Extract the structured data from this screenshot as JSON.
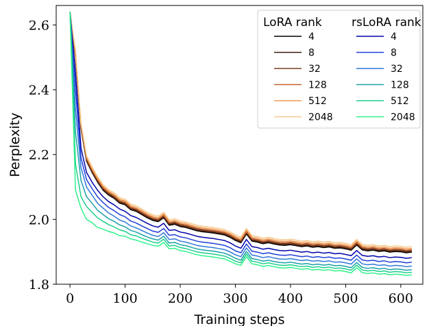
{
  "chart_data": {
    "type": "line",
    "xlabel": "Training steps",
    "ylabel": "Perplexity",
    "xlim": [
      -25,
      640
    ],
    "ylim": [
      1.8,
      2.66
    ],
    "x_ticks": [
      "0",
      "100",
      "200",
      "300",
      "400",
      "500",
      "600"
    ],
    "y_ticks": [
      "1.8",
      "2.0",
      "2.2",
      "2.4",
      "2.6"
    ],
    "grid": false,
    "legend_placement": "top-right",
    "legend": {
      "lora_title": "LoRA rank",
      "rslora_title": "rsLoRA rank"
    },
    "x": [
      0,
      10,
      20,
      30,
      40,
      50,
      60,
      70,
      80,
      90,
      100,
      110,
      120,
      130,
      140,
      150,
      160,
      170,
      180,
      190,
      200,
      210,
      220,
      230,
      240,
      250,
      260,
      270,
      280,
      290,
      300,
      310,
      320,
      330,
      340,
      350,
      360,
      370,
      380,
      390,
      400,
      410,
      420,
      430,
      440,
      450,
      460,
      470,
      480,
      490,
      500,
      510,
      520,
      530,
      540,
      550,
      560,
      570,
      580,
      590,
      600,
      610,
      620
    ],
    "series": [
      {
        "group": "LoRA",
        "name": "4",
        "color": "#000000",
        "values": [
          2.64,
          2.5,
          2.28,
          2.18,
          2.145,
          2.115,
          2.09,
          2.075,
          2.065,
          2.05,
          2.045,
          2.03,
          2.025,
          2.015,
          2.005,
          1.997,
          1.993,
          2.005,
          1.982,
          1.985,
          1.978,
          1.975,
          1.97,
          1.965,
          1.962,
          1.96,
          1.958,
          1.955,
          1.952,
          1.945,
          1.935,
          1.928,
          1.955,
          1.933,
          1.93,
          1.925,
          1.928,
          1.924,
          1.921,
          1.92,
          1.922,
          1.919,
          1.916,
          1.918,
          1.914,
          1.916,
          1.913,
          1.915,
          1.911,
          1.912,
          1.909,
          1.905,
          1.921,
          1.906,
          1.903,
          1.905,
          1.901,
          1.903,
          1.899,
          1.901,
          1.9,
          1.897,
          1.899
        ]
      },
      {
        "group": "LoRA",
        "name": "8",
        "color": "#3a1a0c",
        "values": [
          2.64,
          2.502,
          2.282,
          2.182,
          2.147,
          2.117,
          2.092,
          2.077,
          2.067,
          2.052,
          2.047,
          2.032,
          2.027,
          2.017,
          2.007,
          1.999,
          1.995,
          2.007,
          1.984,
          1.987,
          1.98,
          1.977,
          1.972,
          1.967,
          1.964,
          1.962,
          1.96,
          1.957,
          1.954,
          1.947,
          1.937,
          1.93,
          1.957,
          1.935,
          1.932,
          1.927,
          1.93,
          1.926,
          1.923,
          1.922,
          1.924,
          1.921,
          1.918,
          1.92,
          1.916,
          1.918,
          1.915,
          1.917,
          1.913,
          1.914,
          1.911,
          1.907,
          1.923,
          1.908,
          1.905,
          1.907,
          1.903,
          1.905,
          1.901,
          1.903,
          1.902,
          1.899,
          1.901
        ]
      },
      {
        "group": "LoRA",
        "name": "32",
        "color": "#7a3e1e",
        "values": [
          2.64,
          2.505,
          2.285,
          2.185,
          2.15,
          2.12,
          2.095,
          2.08,
          2.07,
          2.055,
          2.05,
          2.035,
          2.03,
          2.02,
          2.01,
          2.002,
          1.998,
          2.01,
          1.987,
          1.99,
          1.983,
          1.98,
          1.975,
          1.97,
          1.967,
          1.965,
          1.963,
          1.96,
          1.957,
          1.95,
          1.94,
          1.933,
          1.96,
          1.938,
          1.935,
          1.93,
          1.933,
          1.929,
          1.926,
          1.925,
          1.927,
          1.924,
          1.921,
          1.923,
          1.919,
          1.921,
          1.918,
          1.92,
          1.916,
          1.917,
          1.914,
          1.91,
          1.926,
          1.911,
          1.908,
          1.91,
          1.906,
          1.908,
          1.904,
          1.906,
          1.905,
          1.902,
          1.904
        ]
      },
      {
        "group": "LoRA",
        "name": "128",
        "color": "#c4622e",
        "values": [
          2.64,
          2.508,
          2.288,
          2.188,
          2.153,
          2.123,
          2.098,
          2.083,
          2.073,
          2.058,
          2.053,
          2.038,
          2.033,
          2.023,
          2.013,
          2.005,
          2.001,
          2.013,
          1.99,
          1.993,
          1.986,
          1.983,
          1.978,
          1.973,
          1.97,
          1.968,
          1.966,
          1.963,
          1.96,
          1.953,
          1.943,
          1.936,
          1.963,
          1.941,
          1.938,
          1.933,
          1.936,
          1.932,
          1.929,
          1.928,
          1.93,
          1.927,
          1.924,
          1.926,
          1.922,
          1.924,
          1.921,
          1.923,
          1.919,
          1.92,
          1.917,
          1.913,
          1.929,
          1.914,
          1.911,
          1.913,
          1.909,
          1.911,
          1.907,
          1.909,
          1.908,
          1.905,
          1.907
        ]
      },
      {
        "group": "LoRA",
        "name": "512",
        "color": "#ee9a55",
        "values": [
          2.64,
          2.515,
          2.292,
          2.192,
          2.157,
          2.127,
          2.102,
          2.087,
          2.077,
          2.062,
          2.057,
          2.042,
          2.037,
          2.027,
          2.017,
          2.009,
          2.005,
          2.017,
          1.994,
          1.997,
          1.99,
          1.987,
          1.982,
          1.977,
          1.974,
          1.972,
          1.97,
          1.967,
          1.964,
          1.957,
          1.947,
          1.94,
          1.967,
          1.945,
          1.942,
          1.937,
          1.94,
          1.936,
          1.933,
          1.932,
          1.934,
          1.931,
          1.928,
          1.93,
          1.926,
          1.928,
          1.925,
          1.927,
          1.923,
          1.924,
          1.921,
          1.917,
          1.933,
          1.918,
          1.915,
          1.917,
          1.913,
          1.915,
          1.911,
          1.913,
          1.912,
          1.909,
          1.911
        ]
      },
      {
        "group": "LoRA",
        "name": "2048",
        "color": "#f6c98a",
        "values": [
          2.64,
          2.522,
          2.297,
          2.197,
          2.162,
          2.132,
          2.107,
          2.092,
          2.082,
          2.067,
          2.062,
          2.047,
          2.042,
          2.032,
          2.022,
          2.014,
          2.01,
          2.022,
          1.999,
          2.002,
          1.995,
          1.992,
          1.987,
          1.982,
          1.979,
          1.977,
          1.975,
          1.972,
          1.969,
          1.962,
          1.952,
          1.945,
          1.972,
          1.95,
          1.947,
          1.942,
          1.945,
          1.941,
          1.938,
          1.937,
          1.939,
          1.936,
          1.933,
          1.935,
          1.931,
          1.933,
          1.93,
          1.932,
          1.928,
          1.929,
          1.926,
          1.922,
          1.938,
          1.923,
          1.92,
          1.922,
          1.918,
          1.92,
          1.916,
          1.918,
          1.917,
          1.914,
          1.916
        ]
      },
      {
        "group": "rsLoRA",
        "name": "4",
        "color": "#0000aa",
        "values": [
          2.64,
          2.45,
          2.22,
          2.145,
          2.115,
          2.09,
          2.07,
          2.055,
          2.045,
          2.032,
          2.025,
          2.012,
          2.006,
          1.997,
          1.988,
          1.98,
          1.976,
          1.988,
          1.966,
          1.968,
          1.961,
          1.958,
          1.953,
          1.948,
          1.945,
          1.943,
          1.941,
          1.938,
          1.935,
          1.928,
          1.918,
          1.911,
          1.938,
          1.916,
          1.913,
          1.908,
          1.911,
          1.907,
          1.904,
          1.903,
          1.905,
          1.902,
          1.899,
          1.901,
          1.897,
          1.899,
          1.896,
          1.898,
          1.894,
          1.895,
          1.892,
          1.888,
          1.904,
          1.889,
          1.886,
          1.888,
          1.884,
          1.886,
          1.882,
          1.884,
          1.883,
          1.88,
          1.882
        ]
      },
      {
        "group": "rsLoRA",
        "name": "8",
        "color": "#1f3fd8",
        "values": [
          2.64,
          2.4,
          2.19,
          2.123,
          2.095,
          2.07,
          2.052,
          2.037,
          2.027,
          2.015,
          2.008,
          1.995,
          1.989,
          1.98,
          1.972,
          1.964,
          1.96,
          1.972,
          1.951,
          1.953,
          1.946,
          1.943,
          1.938,
          1.933,
          1.93,
          1.928,
          1.926,
          1.923,
          1.92,
          1.913,
          1.903,
          1.897,
          1.924,
          1.902,
          1.899,
          1.894,
          1.897,
          1.893,
          1.89,
          1.889,
          1.891,
          1.888,
          1.885,
          1.887,
          1.883,
          1.885,
          1.882,
          1.884,
          1.88,
          1.881,
          1.878,
          1.874,
          1.89,
          1.875,
          1.872,
          1.874,
          1.87,
          1.872,
          1.868,
          1.87,
          1.869,
          1.866,
          1.868
        ]
      },
      {
        "group": "rsLoRA",
        "name": "32",
        "color": "#2f78d8",
        "values": [
          2.64,
          2.34,
          2.16,
          2.1,
          2.075,
          2.05,
          2.035,
          2.02,
          2.01,
          1.998,
          1.992,
          1.98,
          1.974,
          1.966,
          1.958,
          1.951,
          1.947,
          1.959,
          1.938,
          1.94,
          1.933,
          1.93,
          1.925,
          1.92,
          1.917,
          1.915,
          1.913,
          1.91,
          1.907,
          1.9,
          1.891,
          1.885,
          1.912,
          1.89,
          1.887,
          1.882,
          1.885,
          1.881,
          1.878,
          1.877,
          1.879,
          1.876,
          1.873,
          1.875,
          1.871,
          1.873,
          1.87,
          1.872,
          1.868,
          1.869,
          1.866,
          1.862,
          1.878,
          1.863,
          1.86,
          1.862,
          1.858,
          1.86,
          1.856,
          1.858,
          1.857,
          1.854,
          1.856
        ]
      },
      {
        "group": "rsLoRA",
        "name": "128",
        "color": "#1aa0a8",
        "values": [
          2.64,
          2.27,
          2.12,
          2.07,
          2.05,
          2.028,
          2.015,
          2.002,
          1.994,
          1.983,
          1.977,
          1.966,
          1.961,
          1.953,
          1.946,
          1.94,
          1.936,
          1.948,
          1.927,
          1.929,
          1.922,
          1.919,
          1.914,
          1.909,
          1.906,
          1.904,
          1.902,
          1.899,
          1.896,
          1.889,
          1.88,
          1.874,
          1.901,
          1.879,
          1.876,
          1.871,
          1.874,
          1.87,
          1.867,
          1.866,
          1.868,
          1.865,
          1.862,
          1.864,
          1.86,
          1.862,
          1.859,
          1.861,
          1.857,
          1.858,
          1.855,
          1.851,
          1.867,
          1.852,
          1.849,
          1.851,
          1.847,
          1.849,
          1.845,
          1.847,
          1.846,
          1.843,
          1.845
        ]
      },
      {
        "group": "rsLoRA",
        "name": "512",
        "color": "#1bd08a",
        "values": [
          2.64,
          2.17,
          2.07,
          2.04,
          2.022,
          2.005,
          1.994,
          1.984,
          1.977,
          1.968,
          1.963,
          1.953,
          1.949,
          1.942,
          1.936,
          1.93,
          1.927,
          1.939,
          1.918,
          1.92,
          1.913,
          1.91,
          1.905,
          1.9,
          1.897,
          1.895,
          1.893,
          1.89,
          1.887,
          1.88,
          1.871,
          1.866,
          1.893,
          1.871,
          1.868,
          1.863,
          1.866,
          1.862,
          1.859,
          1.858,
          1.86,
          1.857,
          1.854,
          1.856,
          1.852,
          1.854,
          1.851,
          1.853,
          1.849,
          1.85,
          1.847,
          1.843,
          1.859,
          1.844,
          1.841,
          1.843,
          1.839,
          1.841,
          1.837,
          1.839,
          1.838,
          1.835,
          1.837
        ]
      },
      {
        "group": "rsLoRA",
        "name": "2048",
        "color": "#2ef28a",
        "values": [
          2.64,
          2.09,
          2.035,
          2.0,
          1.99,
          1.975,
          1.97,
          1.963,
          1.958,
          1.95,
          1.948,
          1.94,
          1.936,
          1.93,
          1.925,
          1.92,
          1.917,
          1.929,
          1.909,
          1.911,
          1.904,
          1.901,
          1.896,
          1.891,
          1.888,
          1.886,
          1.884,
          1.881,
          1.878,
          1.871,
          1.863,
          1.858,
          1.885,
          1.863,
          1.86,
          1.855,
          1.858,
          1.854,
          1.851,
          1.85,
          1.852,
          1.849,
          1.846,
          1.848,
          1.844,
          1.846,
          1.843,
          1.845,
          1.841,
          1.842,
          1.839,
          1.835,
          1.851,
          1.836,
          1.833,
          1.835,
          1.831,
          1.833,
          1.829,
          1.831,
          1.83,
          1.827,
          1.829
        ]
      }
    ]
  }
}
